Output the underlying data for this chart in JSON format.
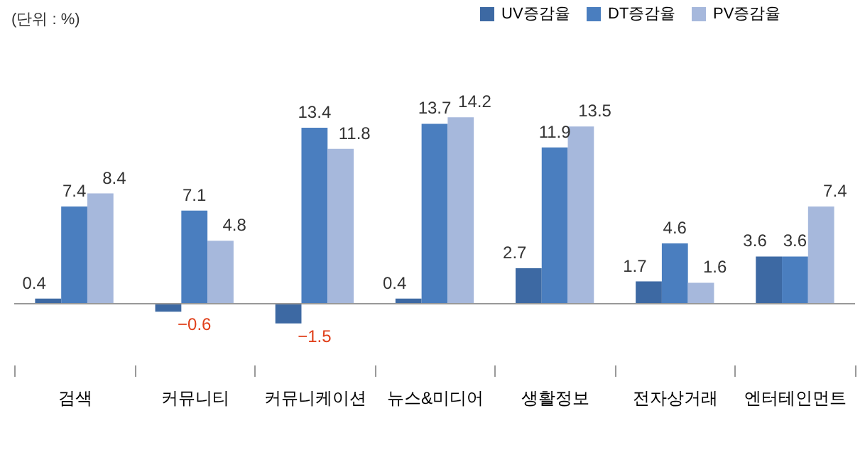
{
  "chart_data": {
    "type": "bar",
    "categories": [
      "검색",
      "커뮤니티",
      "커뮤니케이션",
      "뉴스&미디어",
      "생활정보",
      "전자상거래",
      "엔터테인먼트"
    ],
    "series": [
      {
        "name": "UV증감율",
        "color": "#3d69a3",
        "values": [
          0.4,
          -0.6,
          -1.5,
          0.4,
          2.7,
          1.7,
          3.6
        ]
      },
      {
        "name": "DT증감율",
        "color": "#4a7ebf",
        "values": [
          7.4,
          7.1,
          13.4,
          13.7,
          11.9,
          4.6,
          3.6
        ]
      },
      {
        "name": "PV증감율",
        "color": "#a6b8dc",
        "values": [
          8.4,
          4.8,
          11.8,
          14.2,
          13.5,
          1.6,
          7.4
        ]
      }
    ],
    "annotations": [
      "(단위 : %)"
    ],
    "data_labels": true,
    "legend": "top right",
    "grid": false
  }
}
